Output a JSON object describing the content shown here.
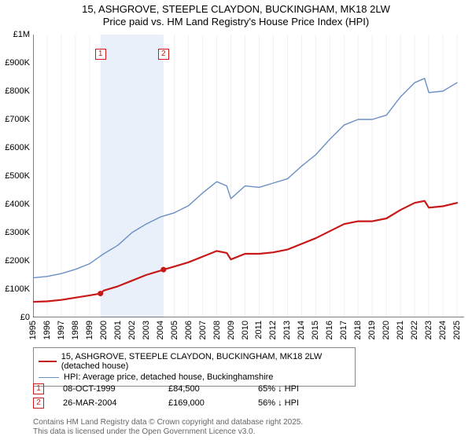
{
  "title_line1": "15, ASHGROVE, STEEPLE CLAYDON, BUCKINGHAM, MK18 2LW",
  "title_line2": "Price paid vs. HM Land Registry's House Price Index (HPI)",
  "chart": {
    "type": "line",
    "background_color": "#ffffff",
    "grid_color": "#f0f0f0",
    "highlight_band_color": "#e9f0fa",
    "axis_color": "#000000",
    "x_years": [
      1995,
      1996,
      1997,
      1998,
      1999,
      2000,
      2001,
      2002,
      2003,
      2004,
      2005,
      2006,
      2007,
      2008,
      2009,
      2010,
      2011,
      2012,
      2013,
      2014,
      2015,
      2016,
      2017,
      2018,
      2019,
      2020,
      2021,
      2022,
      2023,
      2024,
      2025
    ],
    "x_min": 1995,
    "x_max": 2025.5,
    "y_min": 0,
    "y_max": 1000000,
    "y_ticks": [
      0,
      100000,
      200000,
      300000,
      400000,
      500000,
      600000,
      700000,
      800000,
      900000,
      1000000
    ],
    "y_tick_labels": [
      "£0",
      "£100K",
      "£200K",
      "£300K",
      "£400K",
      "£500K",
      "£600K",
      "£700K",
      "£800K",
      "£900K",
      "£1M"
    ],
    "axis_fontsize": 11,
    "highlight_band": {
      "x_start": 1999.77,
      "x_end": 2004.23
    },
    "series": [
      {
        "name": "HPI: Average price, detached house, Buckinghamshire",
        "color": "#6a8fc5",
        "width": 1.4,
        "points": [
          [
            1995,
            140000
          ],
          [
            1996,
            145000
          ],
          [
            1997,
            155000
          ],
          [
            1998,
            170000
          ],
          [
            1999,
            190000
          ],
          [
            2000,
            225000
          ],
          [
            2001,
            255000
          ],
          [
            2002,
            300000
          ],
          [
            2003,
            330000
          ],
          [
            2004,
            355000
          ],
          [
            2005,
            370000
          ],
          [
            2006,
            395000
          ],
          [
            2007,
            440000
          ],
          [
            2008,
            480000
          ],
          [
            2008.7,
            465000
          ],
          [
            2009,
            420000
          ],
          [
            2010,
            465000
          ],
          [
            2011,
            460000
          ],
          [
            2012,
            475000
          ],
          [
            2013,
            490000
          ],
          [
            2014,
            535000
          ],
          [
            2015,
            575000
          ],
          [
            2016,
            630000
          ],
          [
            2017,
            680000
          ],
          [
            2018,
            700000
          ],
          [
            2019,
            700000
          ],
          [
            2020,
            715000
          ],
          [
            2021,
            780000
          ],
          [
            2022,
            830000
          ],
          [
            2022.7,
            845000
          ],
          [
            2023,
            795000
          ],
          [
            2024,
            800000
          ],
          [
            2025,
            830000
          ]
        ]
      },
      {
        "name": "15, ASHGROVE, STEEPLE CLAYDON, BUCKINGHAM, MK18 2LW (detached house)",
        "color": "#c81818",
        "width": 2.2,
        "points": [
          [
            1995,
            55000
          ],
          [
            1996,
            57000
          ],
          [
            1997,
            62000
          ],
          [
            1998,
            70000
          ],
          [
            1999,
            78000
          ],
          [
            1999.77,
            84500
          ],
          [
            2000,
            95000
          ],
          [
            2001,
            110000
          ],
          [
            2002,
            130000
          ],
          [
            2003,
            150000
          ],
          [
            2004,
            165000
          ],
          [
            2004.23,
            169000
          ],
          [
            2005,
            180000
          ],
          [
            2006,
            195000
          ],
          [
            2007,
            215000
          ],
          [
            2008,
            235000
          ],
          [
            2008.7,
            228000
          ],
          [
            2009,
            205000
          ],
          [
            2010,
            225000
          ],
          [
            2011,
            225000
          ],
          [
            2012,
            230000
          ],
          [
            2013,
            240000
          ],
          [
            2014,
            260000
          ],
          [
            2015,
            280000
          ],
          [
            2016,
            305000
          ],
          [
            2017,
            330000
          ],
          [
            2018,
            340000
          ],
          [
            2019,
            340000
          ],
          [
            2020,
            350000
          ],
          [
            2021,
            380000
          ],
          [
            2022,
            405000
          ],
          [
            2022.7,
            412000
          ],
          [
            2023,
            388000
          ],
          [
            2024,
            393000
          ],
          [
            2025,
            405000
          ]
        ]
      }
    ],
    "sale_markers": [
      {
        "n": 1,
        "x": 1999.77,
        "y": 84500,
        "color": "#c81818"
      },
      {
        "n": 2,
        "x": 2004.23,
        "y": 169000,
        "color": "#c81818"
      }
    ]
  },
  "legend": [
    {
      "color": "#c81818",
      "width": 2.2,
      "label": "15, ASHGROVE, STEEPLE CLAYDON, BUCKINGHAM, MK18 2LW (detached house)"
    },
    {
      "color": "#6a8fc5",
      "width": 1.4,
      "label": "HPI: Average price, detached house, Buckinghamshire"
    }
  ],
  "sales": [
    {
      "n": 1,
      "color": "#c81818",
      "date": "08-OCT-1999",
      "price": "£84,500",
      "delta": "65% ↓ HPI"
    },
    {
      "n": 2,
      "color": "#c81818",
      "date": "26-MAR-2004",
      "price": "£169,000",
      "delta": "56% ↓ HPI"
    }
  ],
  "attribution_line1": "Contains HM Land Registry data © Crown copyright and database right 2025.",
  "attribution_line2": "This data is licensed under the Open Government Licence v3.0."
}
